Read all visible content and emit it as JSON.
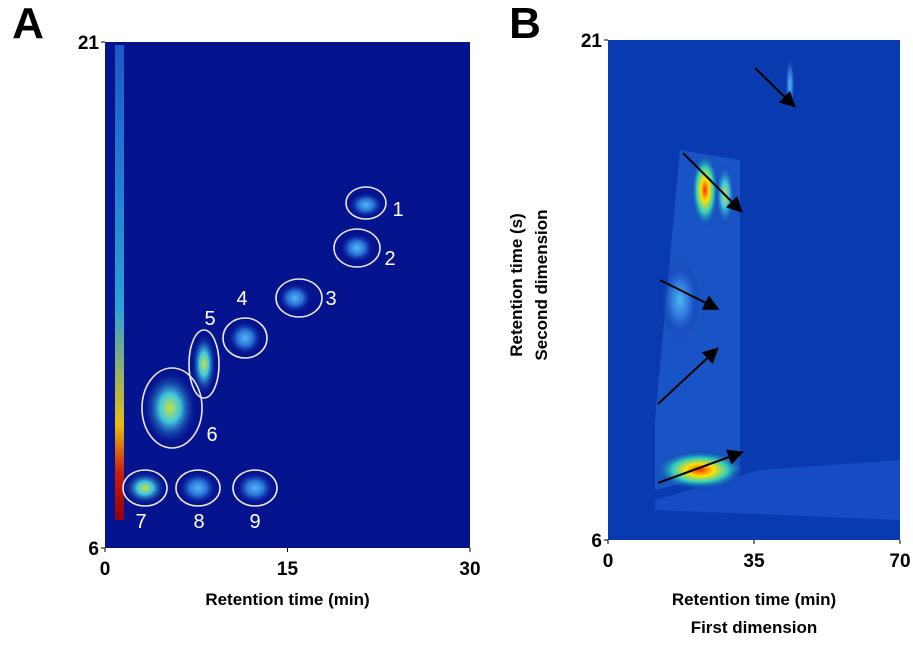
{
  "chart_data": [
    {
      "type": "heatmap",
      "panel": "A",
      "xlabel": "Retention time (min)",
      "xlim": [
        0,
        30
      ],
      "xticks": [
        0,
        15,
        30
      ],
      "ylim": [
        6,
        21
      ],
      "yticks": [
        6,
        21
      ],
      "annotations": [
        "1",
        "2",
        "3",
        "4",
        "5",
        "6",
        "7",
        "8",
        "9"
      ]
    },
    {
      "type": "heatmap",
      "panel": "B",
      "xlabel": [
        "Retention time (min)",
        "First dimension"
      ],
      "ylabel": [
        "Retention time (s)",
        "Second dimension"
      ],
      "xlim": [
        0,
        70
      ],
      "xticks": [
        0,
        35,
        70
      ],
      "ylim": [
        6,
        21
      ],
      "yticks": [
        6,
        21
      ]
    }
  ]
}
